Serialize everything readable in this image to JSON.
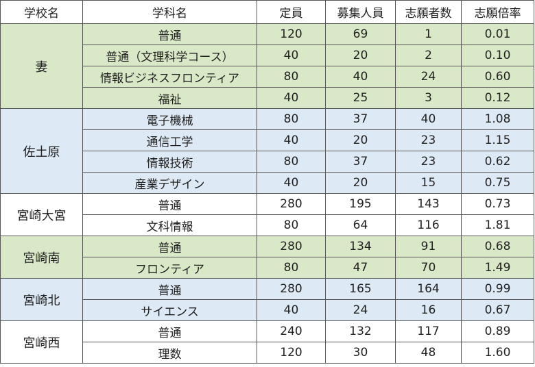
{
  "headers": [
    "学校名",
    "学科名",
    "定員",
    "募集人員",
    "志願者数",
    "志願倍率"
  ],
  "schools": [
    {
      "name": "妻",
      "color": "#d9e8c6",
      "rows": [
        {
          "dept": "普通",
          "capacity": "120",
          "recruit": "69",
          "applicants": "1",
          "ratio": "0.01"
        },
        {
          "dept": "普通（文理科学コース）",
          "capacity": "40",
          "recruit": "20",
          "applicants": "2",
          "ratio": "0.10"
        },
        {
          "dept": "情報ビジネスフロンティア",
          "capacity": "80",
          "recruit": "40",
          "applicants": "24",
          "ratio": "0.60"
        },
        {
          "dept": "福祉",
          "capacity": "40",
          "recruit": "25",
          "applicants": "3",
          "ratio": "0.12"
        }
      ]
    },
    {
      "name": "佐土原",
      "color": "#dde9f5",
      "rows": [
        {
          "dept": "電子機械",
          "capacity": "80",
          "recruit": "37",
          "applicants": "40",
          "ratio": "1.08"
        },
        {
          "dept": "通信工学",
          "capacity": "40",
          "recruit": "20",
          "applicants": "23",
          "ratio": "1.15"
        },
        {
          "dept": "情報技術",
          "capacity": "80",
          "recruit": "37",
          "applicants": "23",
          "ratio": "0.62"
        },
        {
          "dept": "産業デザイン",
          "capacity": "40",
          "recruit": "20",
          "applicants": "15",
          "ratio": "0.75"
        }
      ]
    },
    {
      "name": "宮崎大宮",
      "color": "#ffffff",
      "rows": [
        {
          "dept": "普通",
          "capacity": "280",
          "recruit": "195",
          "applicants": "143",
          "ratio": "0.73"
        },
        {
          "dept": "文科情報",
          "capacity": "80",
          "recruit": "64",
          "applicants": "116",
          "ratio": "1.81"
        }
      ]
    },
    {
      "name": "宮崎南",
      "color": "#d9e8c6",
      "rows": [
        {
          "dept": "普通",
          "capacity": "280",
          "recruit": "134",
          "applicants": "91",
          "ratio": "0.68"
        },
        {
          "dept": "フロンティア",
          "capacity": "80",
          "recruit": "47",
          "applicants": "70",
          "ratio": "1.49"
        }
      ]
    },
    {
      "name": "宮崎北",
      "color": "#dde9f5",
      "rows": [
        {
          "dept": "普通",
          "capacity": "280",
          "recruit": "165",
          "applicants": "164",
          "ratio": "0.99"
        },
        {
          "dept": "サイエンス",
          "capacity": "40",
          "recruit": "24",
          "applicants": "16",
          "ratio": "0.67"
        }
      ]
    },
    {
      "name": "宮崎西",
      "color": "#ffffff",
      "rows": [
        {
          "dept": "普通",
          "capacity": "240",
          "recruit": "132",
          "applicants": "117",
          "ratio": "0.89"
        },
        {
          "dept": "理数",
          "capacity": "120",
          "recruit": "30",
          "applicants": "48",
          "ratio": "1.60"
        }
      ]
    }
  ]
}
